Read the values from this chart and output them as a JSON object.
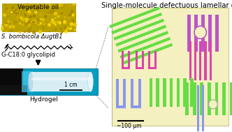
{
  "title_right": "Single-molecule defectuous lamellar gel",
  "label_veg_oil": "Vegetable oil",
  "label_bacteria": "S. bombicola ΔugtB1",
  "label_glycolipid": "G-C18:0 glycolipid",
  "label_hydrogel": "Hydrogel",
  "label_scale_left": "1 cm",
  "label_scale_right": "~100 μm",
  "lamellar_bg": "#f5f0c0",
  "green_color": "#66dd44",
  "purple_color": "#bb55cc",
  "magenta_color": "#dd44aa",
  "blue_color": "#8899ee",
  "veg_oil_color_dark": "#c8a800",
  "veg_oil_color_light": "#e8cc00",
  "hydrogel_bg": "#00bbdd",
  "fig_bg": "#ffffff",
  "title_fontsize": 7.2,
  "label_fontsize": 6.5,
  "small_fontsize": 5.5
}
